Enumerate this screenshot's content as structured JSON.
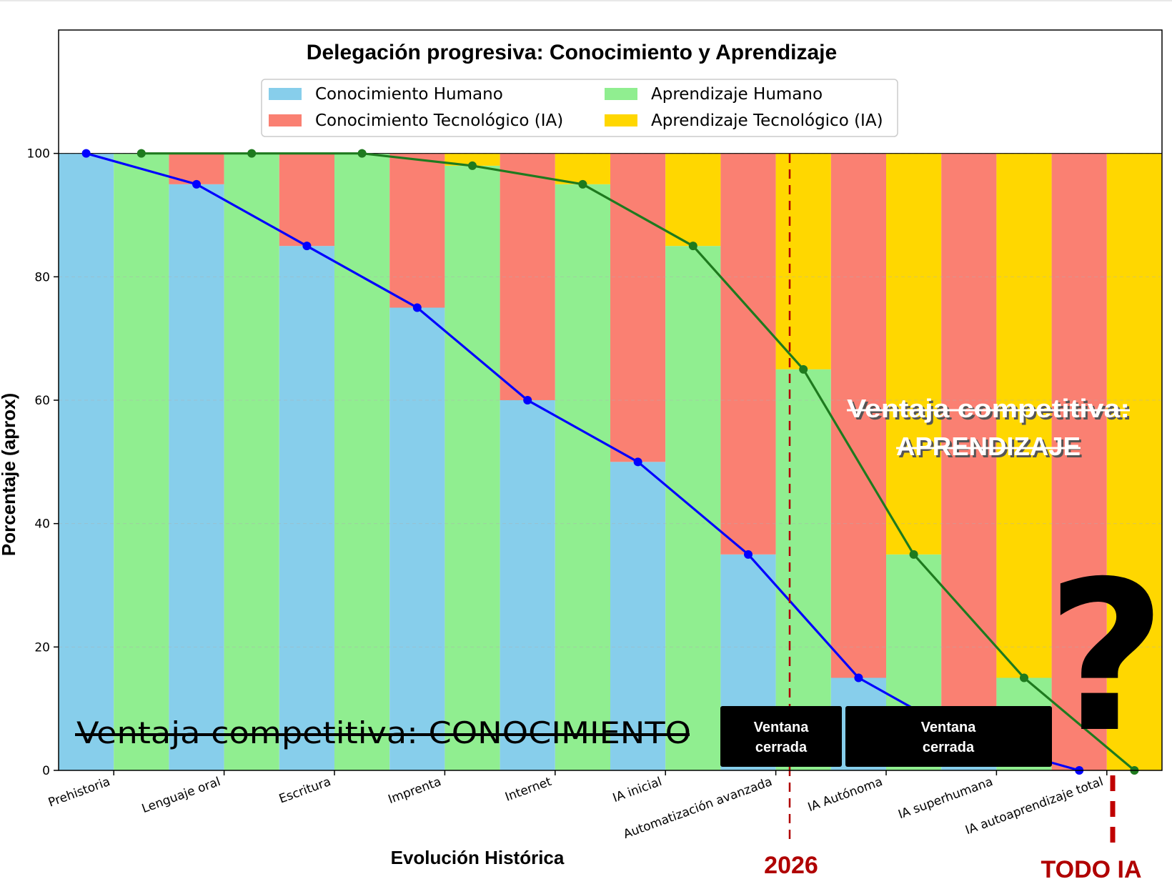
{
  "chart_data": {
    "type": "bar",
    "title": "Delegación progresiva: Conocimiento y Aprendizaje",
    "xlabel": "Evolución Histórica",
    "ylabel": "Porcentaje (aprox)",
    "ylim": [
      0,
      120
    ],
    "yticks": [
      0,
      20,
      40,
      60,
      80,
      100
    ],
    "grid": true,
    "legend_position": "top-center",
    "categories": [
      "Prehistoria",
      "Lenguaje oral",
      "Escritura",
      "Imprenta",
      "Internet",
      "IA inicial",
      "Automatización avanzada",
      "IA Autónoma",
      "IA superhumana",
      "IA autoaprendizaje total"
    ],
    "series": [
      {
        "name": "Conocimiento Humano",
        "color": "#87CEEB",
        "values": [
          100,
          95,
          85,
          75,
          60,
          50,
          35,
          15,
          5,
          0
        ]
      },
      {
        "name": "Conocimiento Tecnológico (IA)",
        "color": "#FA8072",
        "values": [
          0,
          5,
          15,
          25,
          40,
          50,
          65,
          85,
          95,
          100
        ]
      },
      {
        "name": "Aprendizaje Humano",
        "color": "#90EE90",
        "values": [
          100,
          100,
          100,
          98,
          95,
          85,
          65,
          35,
          15,
          0
        ]
      },
      {
        "name": "Aprendizaje Tecnológico (IA)",
        "color": "#FFD700",
        "values": [
          0,
          0,
          0,
          2,
          5,
          15,
          35,
          65,
          85,
          100
        ]
      }
    ],
    "line_colors": {
      "conocimiento": "#0000FF",
      "aprendizaje": "#1E7A1E"
    },
    "annotations": {
      "knowledge_advantage": "Ventaja competitiva: CONOCIMIENTO",
      "learning_advantage_line1": "Ventaja competitiva:",
      "learning_advantage_line2": "APRENDIZAJE",
      "window_1_line1": "Ventana",
      "window_1_line2": "cerrada",
      "window_2_line1": "Ventana",
      "window_2_line2": "cerrada",
      "year_marker": "2026",
      "end_marker": "TODO IA",
      "question_mark": "?"
    }
  }
}
